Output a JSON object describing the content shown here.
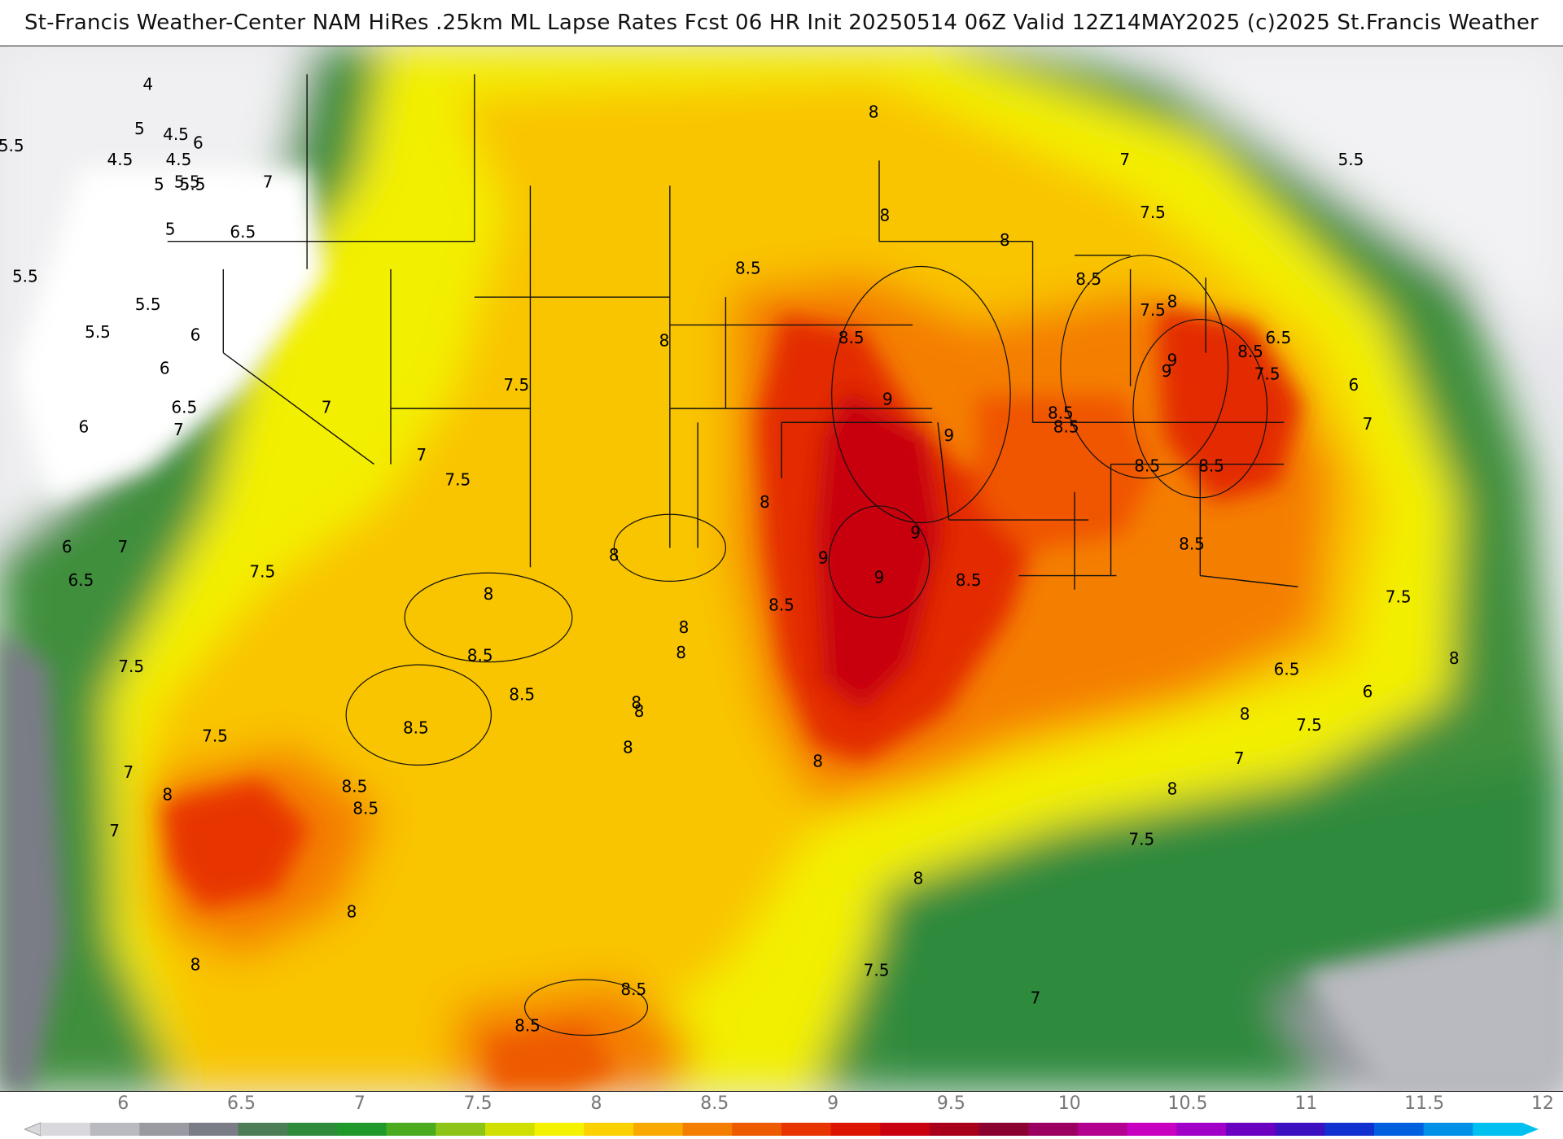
{
  "title": "St-Francis Weather-Center NAM HiRes .25km ML Lapse Rates  Fcst 06 HR Init 20250514 06Z  Valid 12Z14MAY2025    (c)2025 St.Francis Weather",
  "colorbar": {
    "tick_labels": [
      "6",
      "6.5",
      "7",
      "7.5",
      "8",
      "8.5",
      "9",
      "9.5",
      "10",
      "10.5",
      "11",
      "11.5",
      "12"
    ],
    "ticks": [
      6,
      6.5,
      7,
      7.5,
      8,
      8.5,
      9,
      9.5,
      10,
      10.5,
      11,
      11.5,
      12
    ],
    "range": [
      5.7,
      12.1
    ],
    "colors": [
      "#d9d9dd",
      "#b9bac0",
      "#999aa2",
      "#7a7c86",
      "#4d7d55",
      "#2f8a3c",
      "#1f9a2a",
      "#4aab1e",
      "#8cc418",
      "#cfe000",
      "#f5f200",
      "#fbd100",
      "#f9a900",
      "#f47e00",
      "#ee5a00",
      "#e83400",
      "#dd1400",
      "#c80010",
      "#a8001a",
      "#8a0030",
      "#9b0060",
      "#b30090",
      "#c800c0",
      "#a000c8",
      "#6a00c0",
      "#3a10c0",
      "#1030d0",
      "#0060e0",
      "#0090e8",
      "#00c0f0"
    ]
  },
  "contour_labels": [
    {
      "text": "4",
      "lon": -122.7,
      "lat": 48.6
    },
    {
      "text": "4.5",
      "lon": -121.7,
      "lat": 46.8
    },
    {
      "text": "4.5",
      "lon": -123.7,
      "lat": 45.9
    },
    {
      "text": "4.5",
      "lon": -121.6,
      "lat": 45.9
    },
    {
      "text": "5",
      "lon": -122.3,
      "lat": 45.0
    },
    {
      "text": "5",
      "lon": -123.0,
      "lat": 47.0
    },
    {
      "text": "5",
      "lon": -121.9,
      "lat": 43.4
    },
    {
      "text": "5.5",
      "lon": -127.6,
      "lat": 46.4
    },
    {
      "text": "5.5",
      "lon": -121.1,
      "lat": 45.0
    },
    {
      "text": "5.5",
      "lon": -121.3,
      "lat": 45.1
    },
    {
      "text": "5.5",
      "lon": -127.1,
      "lat": 41.7
    },
    {
      "text": "5.5",
      "lon": -122.7,
      "lat": 40.7
    },
    {
      "text": "5.5",
      "lon": -124.5,
      "lat": 39.7
    },
    {
      "text": "5.5",
      "lon": -79.6,
      "lat": 45.9
    },
    {
      "text": "6",
      "lon": -120.9,
      "lat": 46.5
    },
    {
      "text": "6",
      "lon": -121.0,
      "lat": 39.6
    },
    {
      "text": "6",
      "lon": -122.1,
      "lat": 38.4
    },
    {
      "text": "6",
      "lon": -125.0,
      "lat": 36.3
    },
    {
      "text": "6",
      "lon": -125.6,
      "lat": 32.0
    },
    {
      "text": "6",
      "lon": -79.5,
      "lat": 37.8
    },
    {
      "text": "6",
      "lon": -79.0,
      "lat": 26.8
    },
    {
      "text": "6.5",
      "lon": -119.3,
      "lat": 43.3
    },
    {
      "text": "6.5",
      "lon": -121.4,
      "lat": 37.0
    },
    {
      "text": "6.5",
      "lon": -125.1,
      "lat": 30.8
    },
    {
      "text": "6.5",
      "lon": -82.2,
      "lat": 39.5
    },
    {
      "text": "6.5",
      "lon": -81.9,
      "lat": 27.6
    },
    {
      "text": "7",
      "lon": -118.4,
      "lat": 45.1
    },
    {
      "text": "7",
      "lon": -121.6,
      "lat": 36.2
    },
    {
      "text": "7",
      "lon": -116.3,
      "lat": 37.0
    },
    {
      "text": "7",
      "lon": -112.9,
      "lat": 35.3
    },
    {
      "text": "7",
      "lon": -123.6,
      "lat": 32.0
    },
    {
      "text": "7",
      "lon": -123.4,
      "lat": 23.9
    },
    {
      "text": "7",
      "lon": -123.9,
      "lat": 21.8
    },
    {
      "text": "7",
      "lon": -87.7,
      "lat": 45.9
    },
    {
      "text": "7",
      "lon": -79.0,
      "lat": 36.4
    },
    {
      "text": "7",
      "lon": -83.6,
      "lat": 24.4
    },
    {
      "text": "7",
      "lon": -90.9,
      "lat": 15.8
    },
    {
      "text": "7.5",
      "lon": -86.7,
      "lat": 44.0
    },
    {
      "text": "7.5",
      "lon": -86.7,
      "lat": 40.5
    },
    {
      "text": "7.5",
      "lon": -82.6,
      "lat": 38.2
    },
    {
      "text": "7.5",
      "lon": -109.5,
      "lat": 37.8
    },
    {
      "text": "7.5",
      "lon": -111.6,
      "lat": 34.4
    },
    {
      "text": "7.5",
      "lon": -118.6,
      "lat": 31.1
    },
    {
      "text": "7.5",
      "lon": -123.3,
      "lat": 27.7
    },
    {
      "text": "7.5",
      "lon": -120.3,
      "lat": 25.2
    },
    {
      "text": "7.5",
      "lon": -77.9,
      "lat": 30.2
    },
    {
      "text": "7.5",
      "lon": -81.1,
      "lat": 25.6
    },
    {
      "text": "7.5",
      "lon": -87.1,
      "lat": 21.5
    },
    {
      "text": "7.5",
      "lon": -96.6,
      "lat": 16.8
    },
    {
      "text": "8",
      "lon": -96.7,
      "lat": 47.6
    },
    {
      "text": "8",
      "lon": -104.2,
      "lat": 39.4
    },
    {
      "text": "8",
      "lon": -96.3,
      "lat": 43.9
    },
    {
      "text": "8",
      "lon": -92.0,
      "lat": 43.0
    },
    {
      "text": "8",
      "lon": -86.0,
      "lat": 40.8
    },
    {
      "text": "8",
      "lon": -106.0,
      "lat": 31.7
    },
    {
      "text": "8",
      "lon": -100.6,
      "lat": 33.6
    },
    {
      "text": "8",
      "lon": -103.5,
      "lat": 29.1
    },
    {
      "text": "8",
      "lon": -110.5,
      "lat": 30.3
    },
    {
      "text": "8",
      "lon": -105.1,
      "lat": 26.1
    },
    {
      "text": "8",
      "lon": -105.5,
      "lat": 24.8
    },
    {
      "text": "8",
      "lon": -103.6,
      "lat": 28.2
    },
    {
      "text": "8",
      "lon": -98.7,
      "lat": 24.3
    },
    {
      "text": "8",
      "lon": -122.0,
      "lat": 23.1
    },
    {
      "text": "8",
      "lon": -115.4,
      "lat": 18.9
    },
    {
      "text": "8",
      "lon": -121.0,
      "lat": 17.0
    },
    {
      "text": "8",
      "lon": -95.1,
      "lat": 20.1
    },
    {
      "text": "8",
      "lon": -86.0,
      "lat": 23.3
    },
    {
      "text": "8",
      "lon": -75.9,
      "lat": 28.0
    },
    {
      "text": "8",
      "lon": -83.4,
      "lat": 26.0
    },
    {
      "text": "8",
      "lon": -105.2,
      "lat": 26.4
    },
    {
      "text": "8.5",
      "lon": -101.2,
      "lat": 42.0
    },
    {
      "text": "8.5",
      "lon": -97.5,
      "lat": 39.5
    },
    {
      "text": "8.5",
      "lon": -89.0,
      "lat": 41.6
    },
    {
      "text": "8.5",
      "lon": -90.0,
      "lat": 36.8
    },
    {
      "text": "8.5",
      "lon": -89.8,
      "lat": 36.3
    },
    {
      "text": "8.5",
      "lon": -86.9,
      "lat": 34.9
    },
    {
      "text": "8.5",
      "lon": -84.6,
      "lat": 34.9
    },
    {
      "text": "8.5",
      "lon": -83.2,
      "lat": 39.0
    },
    {
      "text": "8.5",
      "lon": -85.3,
      "lat": 32.1
    },
    {
      "text": "8.5",
      "lon": -93.3,
      "lat": 30.8
    },
    {
      "text": "8.5",
      "lon": -100.0,
      "lat": 29.9
    },
    {
      "text": "8.5",
      "lon": -110.8,
      "lat": 28.1
    },
    {
      "text": "8.5",
      "lon": -109.3,
      "lat": 26.7
    },
    {
      "text": "8.5",
      "lon": -113.1,
      "lat": 25.5
    },
    {
      "text": "8.5",
      "lon": -115.3,
      "lat": 23.4
    },
    {
      "text": "8.5",
      "lon": -114.9,
      "lat": 22.6
    },
    {
      "text": "8.5",
      "lon": -105.3,
      "lat": 16.1
    },
    {
      "text": "8.5",
      "lon": -109.1,
      "lat": 14.8
    },
    {
      "text": "9",
      "lon": -96.2,
      "lat": 37.3
    },
    {
      "text": "9",
      "lon": -94.0,
      "lat": 36.0
    },
    {
      "text": "9",
      "lon": -95.2,
      "lat": 32.5
    },
    {
      "text": "9",
      "lon": -98.5,
      "lat": 31.6
    },
    {
      "text": "9",
      "lon": -96.5,
      "lat": 30.9
    },
    {
      "text": "9",
      "lon": -86.0,
      "lat": 38.7
    },
    {
      "text": "9",
      "lon": -86.2,
      "lat": 38.3
    }
  ]
}
